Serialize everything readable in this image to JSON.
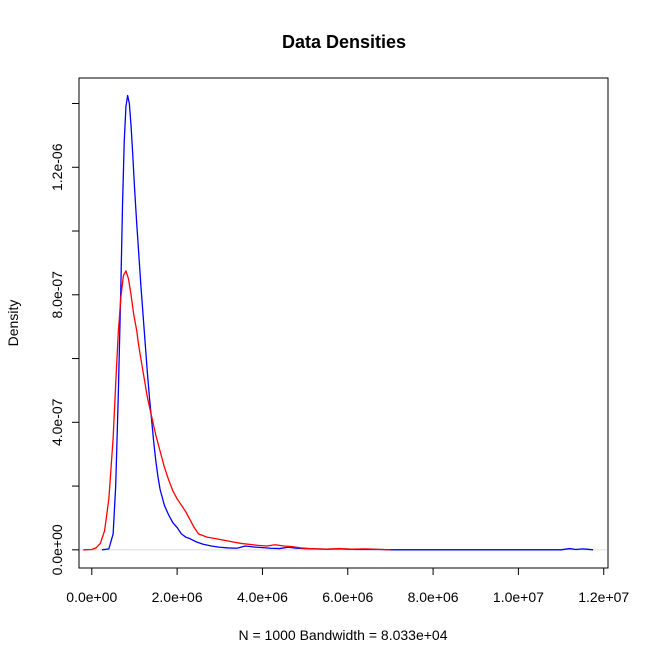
{
  "chart_data": {
    "type": "line",
    "title": "Data Densities",
    "xlabel": "N = 1000   Bandwidth = 8.033e+04",
    "ylabel": "Density",
    "xlim": [
      -300000,
      12100000
    ],
    "ylim": [
      -5.7e-08,
      1.48e-06
    ],
    "x_ticks": [
      0,
      2000000,
      4000000,
      6000000,
      8000000,
      10000000,
      12000000
    ],
    "x_tick_labels": [
      "0.0e+00",
      "2.0e+06",
      "4.0e+06",
      "6.0e+06",
      "8.0e+06",
      "1.0e+07",
      "1.2e+07"
    ],
    "y_ticks": [
      0,
      2e-07,
      4e-07,
      6e-07,
      8e-07,
      1e-06,
      1.2e-06,
      1.4e-06
    ],
    "y_tick_labels": [
      "0.0e+00",
      "",
      "4.0e-07",
      "",
      "8.0e-07",
      "",
      "1.2e-06",
      ""
    ],
    "grid": false,
    "series": [
      {
        "color": "#0000ff",
        "x": [
          240000,
          400000,
          500000,
          560000,
          620000,
          680000,
          720000,
          760000,
          800000,
          840000,
          880000,
          920000,
          960000,
          1000000,
          1050000,
          1100000,
          1150000,
          1200000,
          1250000,
          1300000,
          1350000,
          1400000,
          1450000,
          1500000,
          1550000,
          1600000,
          1700000,
          1800000,
          1900000,
          2000000,
          2100000,
          2200000,
          2300000,
          2450000,
          2600000,
          2800000,
          3000000,
          3200000,
          3400000,
          3600000,
          3800000,
          4000000,
          4200000,
          4400000,
          4600000,
          4800000,
          5000000,
          5200000,
          5500000,
          5800000,
          6000000,
          6200000,
          6500000,
          6800000,
          7000000,
          8000000,
          9000000,
          10000000,
          11000000,
          11200000,
          11350000,
          11500000,
          11600000,
          11750000
        ],
        "y": [
          0.0,
          3e-09,
          5e-08,
          2e-07,
          4.8e-07,
          8.2e-07,
          1.08e-06,
          1.28e-06,
          1.39e-06,
          1.425e-06,
          1.4e-06,
          1.33e-06,
          1.24e-06,
          1.14e-06,
          1.03e-06,
          9.3e-07,
          8.3e-07,
          7.4e-07,
          6.5e-07,
          5.6e-07,
          4.8e-07,
          4.1e-07,
          3.4e-07,
          2.8e-07,
          2.3e-07,
          1.9e-07,
          1.4e-07,
          1.1e-07,
          8.5e-08,
          7e-08,
          5e-08,
          4e-08,
          3.5e-08,
          2.5e-08,
          1.8e-08,
          1.2e-08,
          8e-09,
          6e-09,
          5e-09,
          1.2e-08,
          9e-09,
          7e-09,
          5e-09,
          4e-09,
          8e-09,
          5e-09,
          4e-09,
          3e-09,
          2e-09,
          3e-09,
          2e-09,
          1e-09,
          1e-09,
          1e-09,
          0.0,
          0.0,
          0.0,
          0.0,
          0.0,
          4e-09,
          1e-09,
          3e-09,
          2e-09,
          0.0
        ]
      },
      {
        "color": "#ff0000",
        "x": [
          -200000,
          0,
          100000,
          200000,
          300000,
          400000,
          500000,
          560000,
          620000,
          680000,
          740000,
          800000,
          860000,
          920000,
          980000,
          1050000,
          1100000,
          1150000,
          1200000,
          1250000,
          1300000,
          1350000,
          1400000,
          1450000,
          1500000,
          1600000,
          1700000,
          1800000,
          1900000,
          2000000,
          2100000,
          2200000,
          2300000,
          2400000,
          2500000,
          2700000,
          2900000,
          3100000,
          3300000,
          3500000,
          3700000,
          3900000,
          4100000,
          4300000,
          4500000,
          4700000,
          4900000,
          5100000,
          5300000,
          5500000,
          5800000,
          6100000,
          6400000,
          6600000,
          6800000,
          7000000
        ],
        "y": [
          0.0,
          1e-09,
          6e-09,
          2e-08,
          6e-08,
          1.6e-07,
          3.5e-07,
          5.2e-07,
          6.8e-07,
          7.9e-07,
          8.6e-07,
          8.75e-07,
          8.5e-07,
          8e-07,
          7.4e-07,
          6.9e-07,
          6.4e-07,
          6e-07,
          5.6e-07,
          5.2e-07,
          4.8e-07,
          4.5e-07,
          4.2e-07,
          3.9e-07,
          3.6e-07,
          3.1e-07,
          2.6e-07,
          2.2e-07,
          1.85e-07,
          1.6e-07,
          1.4e-07,
          1.2e-07,
          9.5e-08,
          7e-08,
          5e-08,
          4e-08,
          3.5e-08,
          3e-08,
          2.5e-08,
          2e-08,
          1.7e-08,
          1.4e-08,
          1.2e-08,
          1.6e-08,
          1.2e-08,
          1e-08,
          6e-09,
          4e-09,
          3e-09,
          2e-09,
          4e-09,
          2e-09,
          3e-09,
          2e-09,
          1e-09,
          0.0
        ]
      }
    ]
  }
}
